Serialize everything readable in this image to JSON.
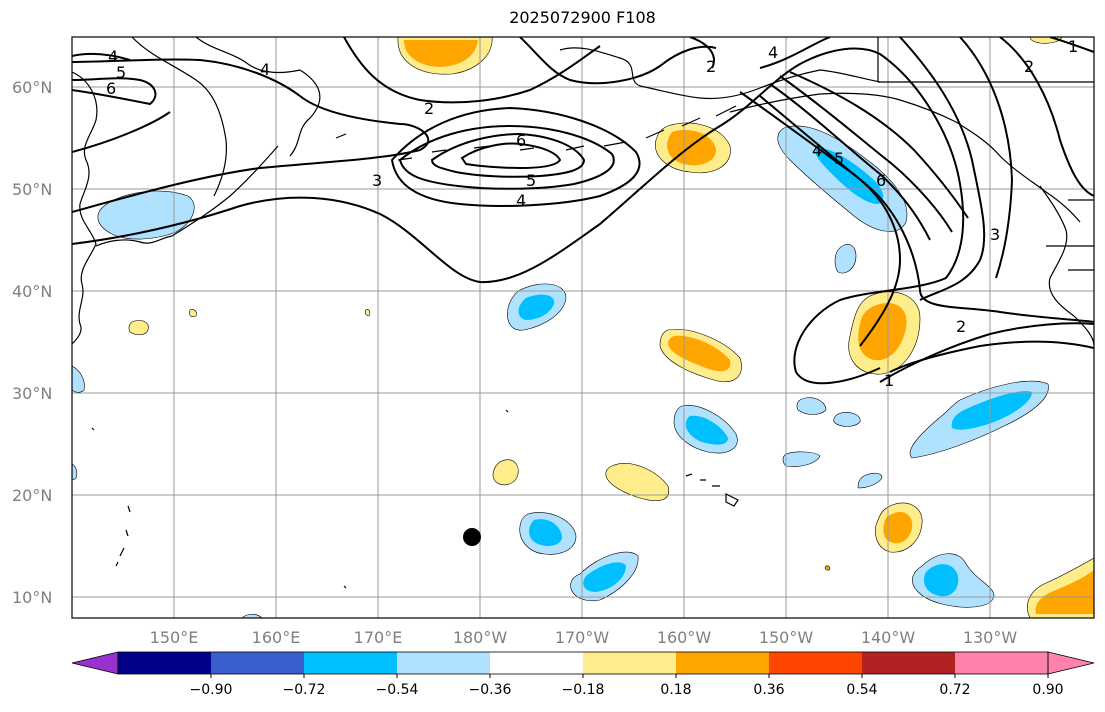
{
  "title": "2025072900 F108",
  "colors": {
    "background": "#ffffff",
    "grid": "#999999",
    "contour": "#000000",
    "coast": "#000000",
    "storm_marker": "#000000"
  },
  "lat_labels": [
    "60°N",
    "50°N",
    "40°N",
    "30°N",
    "20°N",
    "10°N"
  ],
  "lon_labels": [
    "150°E",
    "160°E",
    "170°E",
    "180°W",
    "170°W",
    "160°W",
    "150°W",
    "140°W",
    "130°W"
  ],
  "contour_labels": [
    "4",
    "5",
    "6",
    "4",
    "2",
    "2",
    "6",
    "5",
    "4",
    "3",
    "4",
    "2",
    "1",
    "2",
    "4",
    "5",
    "6",
    "3",
    "2",
    "1"
  ],
  "colorbar": {
    "colors": [
      "#9932cc",
      "#00008b",
      "#3a5fcd",
      "#00bfff",
      "#b0e2ff",
      "#ffffff",
      "#ffec8b",
      "#ffa500",
      "#ff4500",
      "#b22222",
      "#ff82ab",
      "#ff82ab"
    ],
    "ticks": [
      "−0.90",
      "−0.72",
      "−0.54",
      "−0.36",
      "−0.18",
      "0.18",
      "0.36",
      "0.54",
      "0.72",
      "0.90"
    ]
  }
}
